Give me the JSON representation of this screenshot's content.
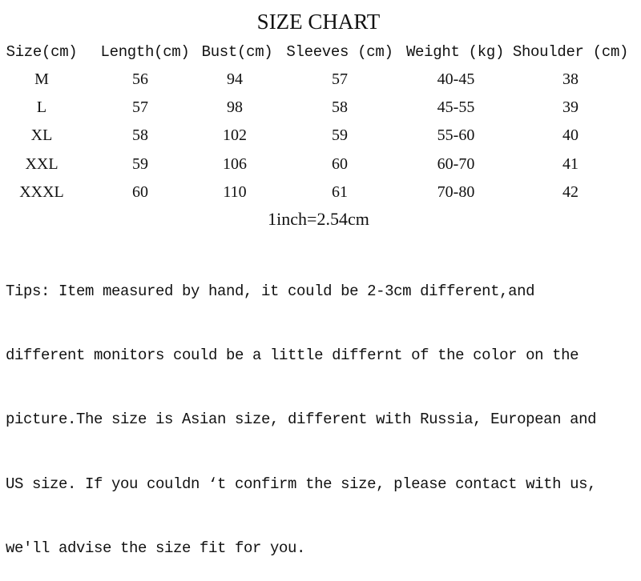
{
  "title": "SIZE CHART",
  "headers": [
    "Size(cm)",
    "Length(cm)",
    "Bust(cm)",
    "Sleeves (cm)",
    "Weight (kg)",
    "Shoulder (cm)"
  ],
  "rows": [
    [
      "M",
      "56",
      "94",
      "57",
      "40-45",
      "38"
    ],
    [
      "L",
      "57",
      "98",
      "58",
      "45-55",
      "39"
    ],
    [
      "XL",
      "58",
      "102",
      "59",
      "55-60",
      "40"
    ],
    [
      "XXL",
      "59",
      "106",
      "60",
      "60-70",
      "41"
    ],
    [
      "XXXL",
      "60",
      "110",
      "61",
      "70-80",
      "42"
    ]
  ],
  "conversion": "1inch=2.54cm",
  "tips": [
    "Tips: Item measured by hand, it could be 2-3cm different,and",
    "different monitors could be a little differnt of the color on the",
    "picture.The size is Asian size, different with Russia, European and",
    "US size. If you couldn ‘t confirm the size, please contact with us,",
    "we'll advise the size fit for you."
  ]
}
